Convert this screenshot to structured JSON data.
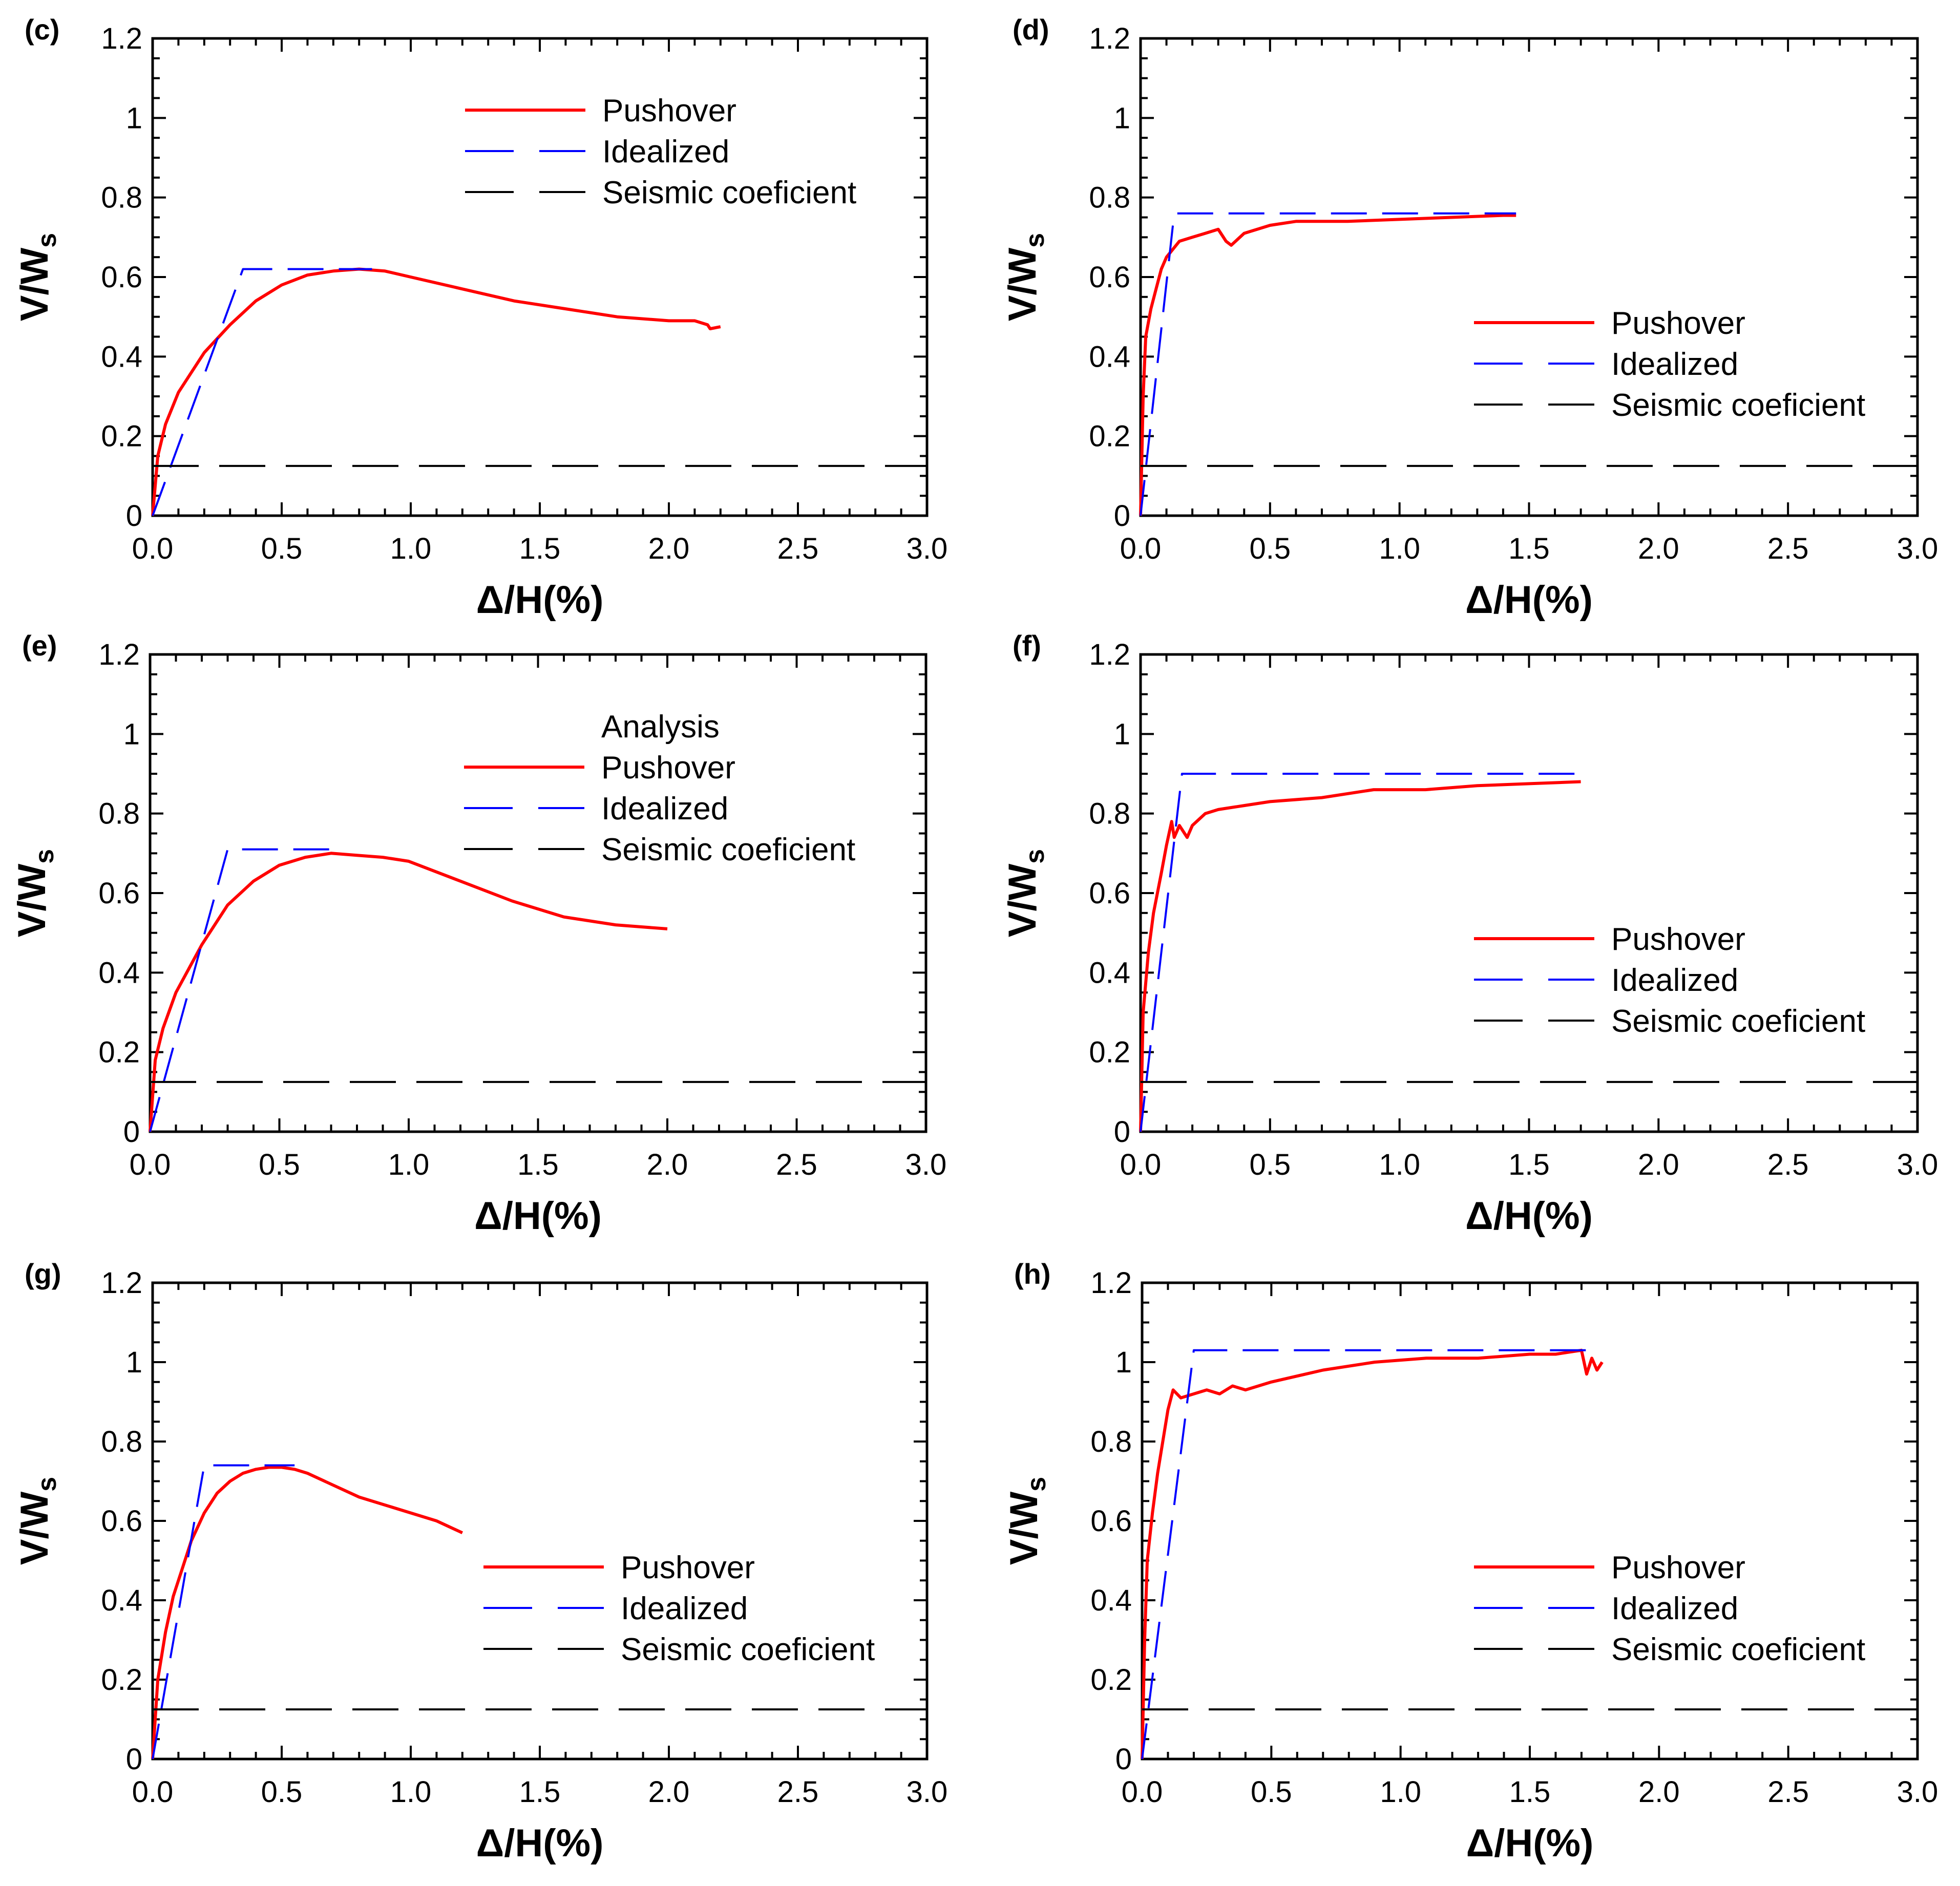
{
  "colors": {
    "pushover": "#ff0000",
    "idealized": "#0000ff",
    "seismic": "#000000",
    "axis": "#000000"
  },
  "chart_data": [
    {
      "id": "c",
      "panel_label": "(c)",
      "type": "line",
      "xlabel": "Δ/H(%)",
      "ylabel": "V/W",
      "ylabel_sub": "s",
      "xlim": [
        0,
        3
      ],
      "ylim": [
        0,
        1.2
      ],
      "x_ticks": [
        "0.0",
        "0.5",
        "1.0",
        "1.5",
        "2.0",
        "2.5",
        "3.0"
      ],
      "y_ticks": [
        "0",
        "0.2",
        "0.4",
        "0.6",
        "0.8",
        "1",
        "1.2"
      ],
      "legend": {
        "position": "top-right",
        "title": "",
        "entries": [
          "Pushover",
          "Idealized",
          "Seismic coeficient"
        ]
      },
      "series": [
        {
          "name": "Pushover",
          "style": "solid",
          "x": [
            0,
            0.02,
            0.05,
            0.1,
            0.15,
            0.2,
            0.3,
            0.4,
            0.5,
            0.6,
            0.7,
            0.8,
            0.9,
            1.0,
            1.2,
            1.4,
            1.6,
            1.8,
            2.0,
            2.1,
            2.15,
            2.16,
            2.2
          ],
          "y": [
            0,
            0.15,
            0.23,
            0.31,
            0.36,
            0.41,
            0.48,
            0.54,
            0.58,
            0.605,
            0.615,
            0.62,
            0.615,
            0.6,
            0.57,
            0.54,
            0.52,
            0.5,
            0.49,
            0.49,
            0.48,
            0.47,
            0.475
          ]
        },
        {
          "name": "Idealized",
          "style": "dashed",
          "x": [
            0,
            0.35,
            0.85
          ],
          "y": [
            0,
            0.62,
            0.62
          ]
        },
        {
          "name": "Seismic coeficient",
          "style": "longdash",
          "x": [
            0,
            3
          ],
          "y": [
            0.125,
            0.125
          ]
        }
      ]
    },
    {
      "id": "d",
      "panel_label": "(d)",
      "type": "line",
      "xlabel": "Δ/H(%)",
      "ylabel": "V/W",
      "ylabel_sub": "s",
      "xlim": [
        0,
        3
      ],
      "ylim": [
        0,
        1.2
      ],
      "x_ticks": [
        "0.0",
        "0.5",
        "1.0",
        "1.5",
        "2.0",
        "2.5",
        "3.0"
      ],
      "y_ticks": [
        "0",
        "0.2",
        "0.4",
        "0.6",
        "0.8",
        "1",
        "1.2"
      ],
      "legend": {
        "position": "middle-right",
        "title": "",
        "entries": [
          "Pushover",
          "Idealized",
          "Seismic coeficient"
        ]
      },
      "series": [
        {
          "name": "Pushover",
          "style": "solid",
          "x": [
            0,
            0.01,
            0.02,
            0.04,
            0.06,
            0.08,
            0.1,
            0.15,
            0.2,
            0.25,
            0.3,
            0.33,
            0.35,
            0.4,
            0.5,
            0.6,
            0.8,
            1.0,
            1.2,
            1.4,
            1.45
          ],
          "y": [
            0,
            0.3,
            0.45,
            0.52,
            0.57,
            0.62,
            0.65,
            0.69,
            0.7,
            0.71,
            0.72,
            0.69,
            0.68,
            0.71,
            0.73,
            0.74,
            0.74,
            0.745,
            0.75,
            0.755,
            0.755
          ]
        },
        {
          "name": "Idealized",
          "style": "dashed",
          "x": [
            0,
            0.13,
            1.45
          ],
          "y": [
            0,
            0.76,
            0.76
          ]
        },
        {
          "name": "Seismic coeficient",
          "style": "longdash",
          "x": [
            0,
            3
          ],
          "y": [
            0.125,
            0.125
          ]
        }
      ]
    },
    {
      "id": "e",
      "panel_label": "(e)",
      "type": "line",
      "xlabel": "Δ/H(%)",
      "ylabel": "V/W",
      "ylabel_sub": "s",
      "xlim": [
        0,
        3
      ],
      "ylim": [
        0,
        1.2
      ],
      "x_ticks": [
        "0.0",
        "0.5",
        "1.0",
        "1.5",
        "2.0",
        "2.5",
        "3.0"
      ],
      "y_ticks": [
        "0",
        "0.2",
        "0.4",
        "0.6",
        "0.8",
        "1",
        "1.2"
      ],
      "legend": {
        "position": "top-right",
        "title": "Analysis",
        "entries": [
          "Pushover",
          "Idealized",
          "Seismic coeficient"
        ]
      },
      "series": [
        {
          "name": "Pushover",
          "style": "solid",
          "x": [
            0,
            0.02,
            0.05,
            0.1,
            0.15,
            0.2,
            0.3,
            0.4,
            0.5,
            0.6,
            0.7,
            0.8,
            0.9,
            1.0,
            1.2,
            1.4,
            1.6,
            1.8,
            2.0
          ],
          "y": [
            0,
            0.18,
            0.26,
            0.35,
            0.41,
            0.47,
            0.57,
            0.63,
            0.67,
            0.69,
            0.7,
            0.695,
            0.69,
            0.68,
            0.63,
            0.58,
            0.54,
            0.52,
            0.51
          ]
        },
        {
          "name": "Idealized",
          "style": "dashed",
          "x": [
            0,
            0.3,
            0.7
          ],
          "y": [
            0,
            0.71,
            0.71
          ]
        },
        {
          "name": "Seismic coeficient",
          "style": "longdash",
          "x": [
            0,
            3
          ],
          "y": [
            0.125,
            0.125
          ]
        }
      ]
    },
    {
      "id": "f",
      "panel_label": "(f)",
      "type": "line",
      "xlabel": "Δ/H(%)",
      "ylabel": "V/W",
      "ylabel_sub": "s",
      "xlim": [
        0,
        3
      ],
      "ylim": [
        0,
        1.2
      ],
      "x_ticks": [
        "0.0",
        "0.5",
        "1.0",
        "1.5",
        "2.0",
        "2.5",
        "3.0"
      ],
      "y_ticks": [
        "0",
        "0.2",
        "0.4",
        "0.6",
        "0.8",
        "1",
        "1.2"
      ],
      "legend": {
        "position": "middle-right",
        "title": "",
        "entries": [
          "Pushover",
          "Idealized",
          "Seismic coeficient"
        ]
      },
      "series": [
        {
          "name": "Pushover",
          "style": "solid",
          "x": [
            0,
            0.01,
            0.03,
            0.05,
            0.08,
            0.1,
            0.12,
            0.13,
            0.15,
            0.18,
            0.2,
            0.25,
            0.3,
            0.4,
            0.5,
            0.7,
            0.9,
            1.1,
            1.3,
            1.5,
            1.7
          ],
          "y": [
            0,
            0.3,
            0.45,
            0.55,
            0.65,
            0.72,
            0.78,
            0.74,
            0.77,
            0.74,
            0.77,
            0.8,
            0.81,
            0.82,
            0.83,
            0.84,
            0.86,
            0.86,
            0.87,
            0.875,
            0.88
          ]
        },
        {
          "name": "Idealized",
          "style": "dashed",
          "x": [
            0,
            0.16,
            1.72
          ],
          "y": [
            0,
            0.9,
            0.9
          ]
        },
        {
          "name": "Seismic coeficient",
          "style": "longdash",
          "x": [
            0,
            3
          ],
          "y": [
            0.125,
            0.125
          ]
        }
      ]
    },
    {
      "id": "g",
      "panel_label": "(g)",
      "type": "line",
      "xlabel": "Δ/H(%)",
      "ylabel": "V/W",
      "ylabel_sub": "s",
      "xlim": [
        0,
        3
      ],
      "ylim": [
        0,
        1.2
      ],
      "x_ticks": [
        "0.0",
        "0.5",
        "1.0",
        "1.5",
        "2.0",
        "2.5",
        "3.0"
      ],
      "y_ticks": [
        "0",
        "0.2",
        "0.4",
        "0.6",
        "0.8",
        "1",
        "1.2"
      ],
      "legend": {
        "position": "bottom-right",
        "title": "",
        "entries": [
          "Pushover",
          "Idealized",
          "Seismic coeficient"
        ]
      },
      "series": [
        {
          "name": "Pushover",
          "style": "solid",
          "x": [
            0,
            0.02,
            0.05,
            0.08,
            0.12,
            0.15,
            0.2,
            0.25,
            0.3,
            0.35,
            0.4,
            0.45,
            0.5,
            0.55,
            0.6,
            0.7,
            0.8,
            0.9,
            1.0,
            1.1,
            1.2
          ],
          "y": [
            0,
            0.2,
            0.32,
            0.41,
            0.49,
            0.55,
            0.62,
            0.67,
            0.7,
            0.72,
            0.73,
            0.735,
            0.735,
            0.73,
            0.72,
            0.69,
            0.66,
            0.64,
            0.62,
            0.6,
            0.57
          ]
        },
        {
          "name": "Idealized",
          "style": "dashed",
          "x": [
            0,
            0.2,
            0.55
          ],
          "y": [
            0,
            0.74,
            0.74
          ]
        },
        {
          "name": "Seismic coeficient",
          "style": "longdash",
          "x": [
            0,
            3
          ],
          "y": [
            0.125,
            0.125
          ]
        }
      ]
    },
    {
      "id": "h",
      "panel_label": "(h)",
      "type": "line",
      "xlabel": "Δ/H(%)",
      "ylabel": "V/W",
      "ylabel_sub": "s",
      "xlim": [
        0,
        3
      ],
      "ylim": [
        0,
        1.2
      ],
      "x_ticks": [
        "0.0",
        "0.5",
        "1.0",
        "1.5",
        "2.0",
        "2.5",
        "3.0"
      ],
      "y_ticks": [
        "0",
        "0.2",
        "0.4",
        "0.6",
        "0.8",
        "1",
        "1.2"
      ],
      "legend": {
        "position": "bottom-right",
        "title": "",
        "entries": [
          "Pushover",
          "Idealized",
          "Seismic coeficient"
        ]
      },
      "series": [
        {
          "name": "Pushover",
          "style": "solid",
          "x": [
            0,
            0.01,
            0.02,
            0.04,
            0.06,
            0.08,
            0.1,
            0.12,
            0.15,
            0.2,
            0.25,
            0.3,
            0.35,
            0.4,
            0.5,
            0.7,
            0.9,
            1.1,
            1.3,
            1.5,
            1.6,
            1.7,
            1.72,
            1.74,
            1.76,
            1.78
          ],
          "y": [
            0,
            0.3,
            0.5,
            0.62,
            0.72,
            0.8,
            0.88,
            0.93,
            0.91,
            0.92,
            0.93,
            0.92,
            0.94,
            0.93,
            0.95,
            0.98,
            1.0,
            1.01,
            1.01,
            1.02,
            1.02,
            1.03,
            0.97,
            1.01,
            0.98,
            1.0
          ]
        },
        {
          "name": "Idealized",
          "style": "dashed",
          "x": [
            0,
            0.2,
            1.75
          ],
          "y": [
            0,
            1.03,
            1.03
          ]
        },
        {
          "name": "Seismic coeficient",
          "style": "longdash",
          "x": [
            0,
            3
          ],
          "y": [
            0.125,
            0.125
          ]
        }
      ]
    }
  ]
}
